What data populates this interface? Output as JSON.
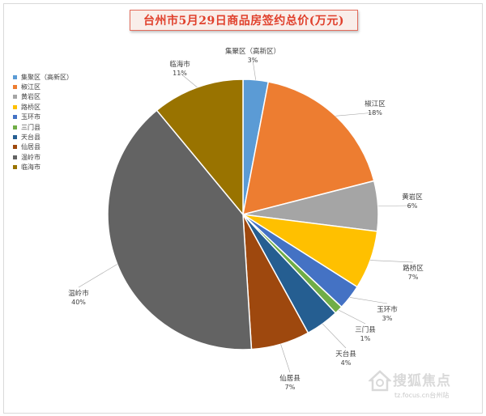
{
  "chart_data": {
    "type": "pie",
    "title": "台州市5月29日商品房签约总价(万元)",
    "categories": [
      "集聚区（高新区）",
      "椒江区",
      "黄岩区",
      "路桥区",
      "玉环市",
      "三门县",
      "天台县",
      "仙居县",
      "温岭市",
      "临海市"
    ],
    "values": [
      3,
      18,
      6,
      7,
      3,
      1,
      4,
      7,
      40,
      11
    ],
    "value_labels": [
      "3%",
      "18%",
      "6%",
      "7%",
      "3%",
      "1%",
      "4%",
      "7%",
      "40%",
      "11%"
    ],
    "colors": [
      "#5B9BD5",
      "#ED7D31",
      "#A5A5A5",
      "#FFC000",
      "#4472C4",
      "#70AD47",
      "#255E91",
      "#9E480E",
      "#636363",
      "#997300"
    ],
    "legend_position": "left"
  },
  "watermark": {
    "brand": "搜狐焦点",
    "url": "tz.focus.cn台州站"
  }
}
